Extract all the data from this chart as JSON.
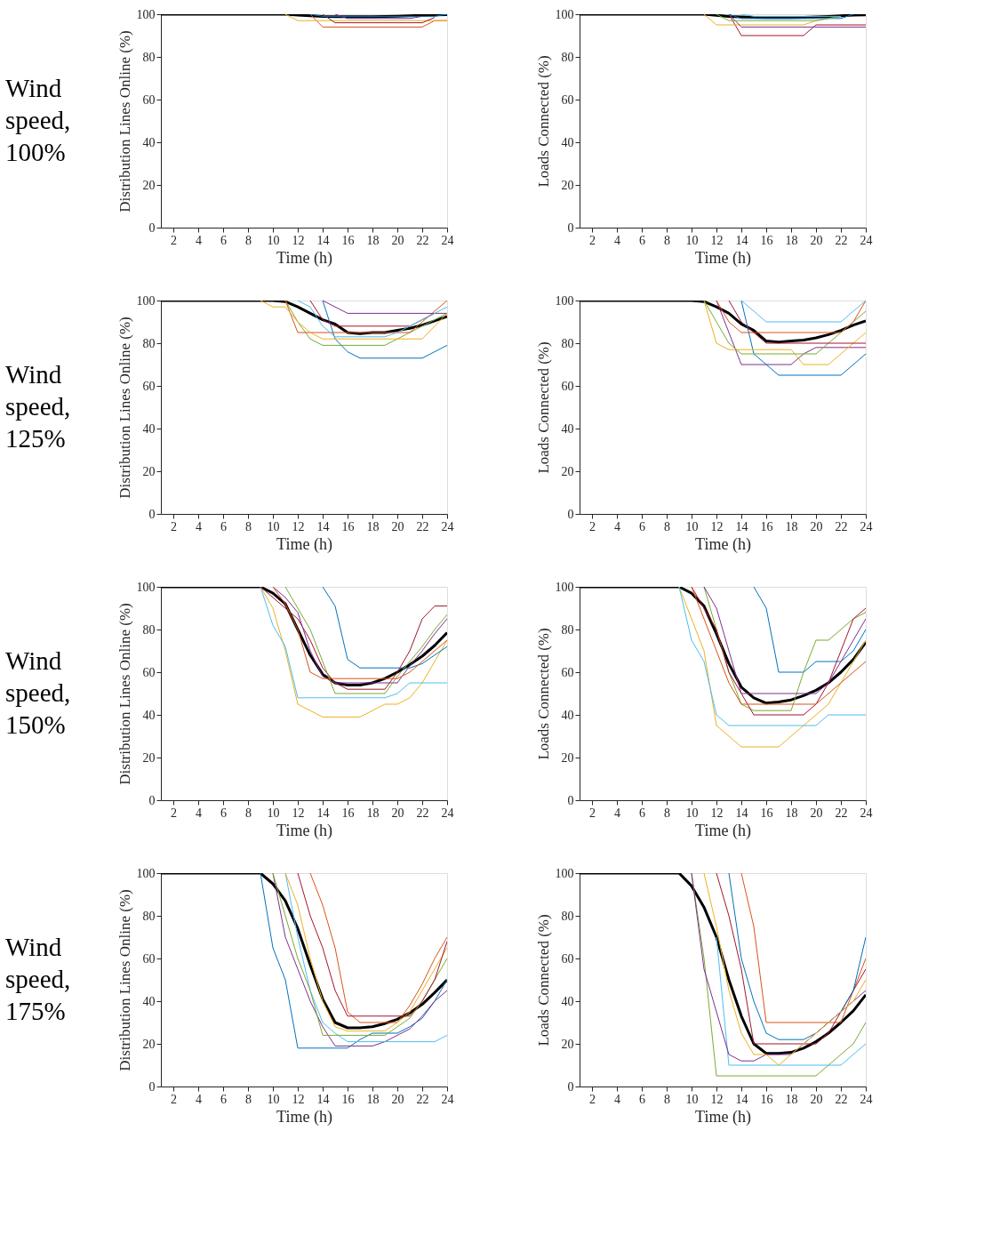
{
  "chart_data": [
    {
      "type": "line",
      "xlabel": "Time (h)",
      "ylabel": "Distribution Lines Online (%)",
      "annotations": [
        "Wind speed, 100%"
      ],
      "x": [
        1,
        2,
        3,
        4,
        5,
        6,
        7,
        8,
        9,
        10,
        11,
        12,
        13,
        14,
        15,
        16,
        17,
        18,
        19,
        20,
        21,
        22,
        23,
        24
      ],
      "xlim": [
        1,
        24
      ],
      "xticks": [
        2,
        4,
        6,
        8,
        10,
        12,
        14,
        16,
        18,
        20,
        22,
        24
      ],
      "ylim": [
        0,
        100
      ],
      "yticks": [
        0,
        20,
        40,
        60,
        80,
        100
      ],
      "grid": false,
      "series": [
        {
          "color": "#d95319",
          "values": [
            null,
            null,
            null,
            null,
            null,
            null,
            null,
            null,
            null,
            null,
            null,
            null,
            100,
            94,
            94,
            94,
            94,
            94,
            94,
            94,
            94,
            94,
            97,
            97
          ]
        },
        {
          "color": "#edb120",
          "values": [
            null,
            null,
            null,
            null,
            null,
            null,
            null,
            null,
            null,
            null,
            100,
            97,
            97,
            97,
            97,
            97,
            97,
            97,
            97,
            97,
            97,
            97,
            97,
            97
          ]
        },
        {
          "color": "#a2142f",
          "values": [
            null,
            null,
            null,
            null,
            null,
            null,
            null,
            null,
            null,
            null,
            null,
            null,
            null,
            100,
            96,
            96,
            96,
            96,
            96,
            96,
            96,
            96,
            98.5,
            null
          ]
        },
        {
          "color": "#0072bd",
          "values": [
            null,
            null,
            null,
            null,
            null,
            null,
            null,
            null,
            null,
            null,
            null,
            null,
            100,
            99,
            99,
            99,
            99,
            99,
            99,
            99,
            99,
            99,
            99,
            100
          ]
        },
        {
          "color": "#7e2f8e",
          "values": [
            null,
            null,
            null,
            null,
            null,
            null,
            null,
            null,
            null,
            null,
            null,
            null,
            null,
            null,
            100,
            98,
            98,
            98,
            98,
            98,
            98,
            99,
            null,
            null
          ]
        },
        {
          "color": "#000000",
          "values": [
            100,
            100,
            100,
            100,
            100,
            100,
            100,
            100,
            100,
            100,
            100,
            99.6,
            99.3,
            99,
            98.9,
            98.9,
            98.9,
            98.9,
            99,
            99.1,
            99.3,
            99.5,
            99.7,
            99.8
          ]
        }
      ]
    },
    {
      "type": "line",
      "xlabel": "Time (h)",
      "ylabel": "Loads Connected (%)",
      "x": [
        1,
        2,
        3,
        4,
        5,
        6,
        7,
        8,
        9,
        10,
        11,
        12,
        13,
        14,
        15,
        16,
        17,
        18,
        19,
        20,
        21,
        22,
        23,
        24
      ],
      "xlim": [
        1,
        24
      ],
      "xticks": [
        2,
        4,
        6,
        8,
        10,
        12,
        14,
        16,
        18,
        20,
        22,
        24
      ],
      "ylim": [
        0,
        100
      ],
      "yticks": [
        0,
        20,
        40,
        60,
        80,
        100
      ],
      "grid": false,
      "series": [
        {
          "color": "#a2142f",
          "values": [
            null,
            null,
            null,
            null,
            null,
            null,
            null,
            null,
            null,
            null,
            null,
            null,
            100,
            90,
            90,
            90,
            90,
            90,
            90,
            95,
            95,
            95,
            95,
            95
          ]
        },
        {
          "color": "#edb120",
          "values": [
            null,
            null,
            null,
            null,
            null,
            null,
            null,
            null,
            null,
            null,
            100,
            95,
            95,
            95,
            95,
            95,
            95,
            95,
            95,
            97,
            98,
            null,
            null,
            null
          ]
        },
        {
          "color": "#7e2f8e",
          "values": [
            null,
            null,
            null,
            null,
            null,
            null,
            null,
            null,
            null,
            null,
            null,
            null,
            100,
            94,
            94,
            94,
            94,
            94,
            94,
            94,
            94,
            94,
            94,
            94
          ]
        },
        {
          "color": "#0072bd",
          "values": [
            null,
            null,
            null,
            null,
            null,
            null,
            null,
            null,
            null,
            null,
            null,
            null,
            100,
            98,
            98,
            98,
            98,
            98,
            98,
            98,
            98,
            98,
            100,
            null
          ]
        },
        {
          "color": "#77ac30",
          "values": [
            null,
            null,
            null,
            null,
            null,
            null,
            null,
            null,
            null,
            null,
            null,
            100,
            97,
            97,
            97,
            97,
            97,
            97,
            97,
            97,
            98,
            99,
            null,
            null
          ]
        },
        {
          "color": "#4dbeee",
          "values": [
            null,
            null,
            null,
            null,
            null,
            null,
            null,
            null,
            null,
            null,
            null,
            null,
            null,
            100,
            99,
            99,
            99,
            99,
            99,
            99,
            99,
            99,
            null,
            null
          ]
        },
        {
          "color": "#000000",
          "values": [
            100,
            100,
            100,
            100,
            100,
            100,
            100,
            100,
            100,
            100,
            100,
            99.5,
            99,
            98.7,
            98.5,
            98.4,
            98.4,
            98.4,
            98.5,
            98.7,
            99,
            99.3,
            99.6,
            99.7
          ]
        }
      ]
    },
    {
      "type": "line",
      "xlabel": "Time (h)",
      "ylabel": "Distribution Lines Online (%)",
      "annotations": [
        "Wind speed, 125%"
      ],
      "x": [
        1,
        2,
        3,
        4,
        5,
        6,
        7,
        8,
        9,
        10,
        11,
        12,
        13,
        14,
        15,
        16,
        17,
        18,
        19,
        20,
        21,
        22,
        23,
        24
      ],
      "xlim": [
        1,
        24
      ],
      "xticks": [
        2,
        4,
        6,
        8,
        10,
        12,
        14,
        16,
        18,
        20,
        22,
        24
      ],
      "ylim": [
        0,
        100
      ],
      "yticks": [
        0,
        20,
        40,
        60,
        80,
        100
      ],
      "grid": false,
      "series": [
        {
          "color": "#0072bd",
          "values": [
            null,
            null,
            null,
            null,
            null,
            null,
            null,
            null,
            null,
            null,
            null,
            null,
            null,
            100,
            82,
            76,
            73,
            73,
            73,
            73,
            73,
            73,
            76,
            79
          ]
        },
        {
          "color": "#77ac30",
          "values": [
            null,
            null,
            null,
            null,
            null,
            null,
            null,
            null,
            null,
            null,
            100,
            90,
            82,
            79,
            79,
            79,
            79,
            79,
            79,
            82,
            85,
            88,
            91,
            94
          ]
        },
        {
          "color": "#d95319",
          "values": [
            null,
            null,
            null,
            null,
            null,
            null,
            null,
            null,
            null,
            null,
            100,
            85,
            85,
            85,
            85,
            85,
            null,
            null,
            85,
            85,
            85,
            90,
            95,
            100
          ]
        },
        {
          "color": "#7e2f8e",
          "values": [
            null,
            null,
            null,
            null,
            null,
            null,
            null,
            null,
            null,
            null,
            null,
            null,
            null,
            100,
            97,
            94,
            94,
            94,
            94,
            94,
            94,
            94,
            94,
            94
          ]
        },
        {
          "color": "#edb120",
          "values": [
            null,
            null,
            null,
            null,
            null,
            null,
            null,
            null,
            100,
            97,
            97,
            90,
            85,
            82,
            82,
            82,
            82,
            82,
            82,
            82,
            82,
            82,
            88,
            94
          ]
        },
        {
          "color": "#a2142f",
          "values": [
            null,
            null,
            null,
            null,
            null,
            null,
            null,
            null,
            null,
            null,
            null,
            null,
            100,
            91,
            88,
            88,
            88,
            88,
            88,
            88,
            88,
            91,
            94,
            null
          ]
        },
        {
          "color": "#4dbeee",
          "values": [
            null,
            null,
            null,
            null,
            null,
            null,
            null,
            null,
            null,
            null,
            null,
            100,
            97,
            88,
            83,
            83,
            83,
            83,
            83,
            85,
            88,
            91,
            94,
            97
          ]
        },
        {
          "color": "#000000",
          "values": [
            100,
            100,
            100,
            100,
            100,
            100,
            100,
            100,
            100,
            100,
            99.5,
            97,
            94,
            91,
            89,
            85,
            84.5,
            85,
            85,
            86,
            87,
            88.5,
            90.5,
            92.5
          ]
        }
      ]
    },
    {
      "type": "line",
      "xlabel": "Time (h)",
      "ylabel": "Loads Connected (%)",
      "x": [
        1,
        2,
        3,
        4,
        5,
        6,
        7,
        8,
        9,
        10,
        11,
        12,
        13,
        14,
        15,
        16,
        17,
        18,
        19,
        20,
        21,
        22,
        23,
        24
      ],
      "xlim": [
        1,
        24
      ],
      "xticks": [
        2,
        4,
        6,
        8,
        10,
        12,
        14,
        16,
        18,
        20,
        22,
        24
      ],
      "ylim": [
        0,
        100
      ],
      "yticks": [
        0,
        20,
        40,
        60,
        80,
        100
      ],
      "grid": false,
      "series": [
        {
          "color": "#0072bd",
          "values": [
            null,
            null,
            null,
            null,
            null,
            null,
            null,
            null,
            null,
            null,
            null,
            null,
            null,
            100,
            75,
            70,
            65,
            65,
            65,
            65,
            65,
            65,
            70,
            75
          ]
        },
        {
          "color": "#7e2f8e",
          "values": [
            null,
            null,
            null,
            null,
            null,
            null,
            null,
            null,
            null,
            null,
            null,
            100,
            85,
            70,
            70,
            70,
            70,
            70,
            75,
            78,
            78,
            78,
            78,
            78
          ]
        },
        {
          "color": "#edb120",
          "values": [
            null,
            null,
            null,
            null,
            null,
            null,
            null,
            null,
            null,
            null,
            100,
            80,
            77,
            77,
            77,
            77,
            77,
            77,
            70,
            70,
            70,
            75,
            80,
            85
          ]
        },
        {
          "color": "#77ac30",
          "values": [
            null,
            null,
            null,
            null,
            null,
            null,
            null,
            null,
            null,
            null,
            100,
            90,
            80,
            75,
            75,
            75,
            75,
            75,
            75,
            75,
            80,
            85,
            90,
            95
          ]
        },
        {
          "color": "#d95319",
          "values": [
            null,
            null,
            null,
            null,
            null,
            null,
            null,
            null,
            null,
            null,
            null,
            100,
            90,
            85,
            85,
            85,
            85,
            85,
            85,
            85,
            85,
            85,
            90,
            100
          ]
        },
        {
          "color": "#a2142f",
          "values": [
            null,
            null,
            null,
            null,
            null,
            null,
            null,
            null,
            null,
            null,
            null,
            null,
            100,
            90,
            85,
            80,
            80,
            80,
            80,
            80,
            80,
            80,
            80,
            80
          ]
        },
        {
          "color": "#4dbeee",
          "values": [
            null,
            null,
            null,
            null,
            null,
            null,
            null,
            null,
            null,
            null,
            null,
            null,
            null,
            100,
            95,
            90,
            90,
            90,
            90,
            90,
            90,
            90,
            95,
            100
          ]
        },
        {
          "color": "#000000",
          "values": [
            100,
            100,
            100,
            100,
            100,
            100,
            100,
            100,
            100,
            100,
            99.5,
            97,
            94,
            89,
            86,
            81,
            80.5,
            81,
            81.5,
            82.5,
            84,
            86,
            88.5,
            90.5
          ]
        }
      ]
    },
    {
      "type": "line",
      "xlabel": "Time (h)",
      "ylabel": "Distribution Lines Online (%)",
      "annotations": [
        "Wind speed, 150%"
      ],
      "x": [
        1,
        2,
        3,
        4,
        5,
        6,
        7,
        8,
        9,
        10,
        11,
        12,
        13,
        14,
        15,
        16,
        17,
        18,
        19,
        20,
        21,
        22,
        23,
        24
      ],
      "xlim": [
        1,
        24
      ],
      "xticks": [
        2,
        4,
        6,
        8,
        10,
        12,
        14,
        16,
        18,
        20,
        22,
        24
      ],
      "ylim": [
        0,
        100
      ],
      "yticks": [
        0,
        20,
        40,
        60,
        80,
        100
      ],
      "grid": false,
      "series": [
        {
          "color": "#edb120",
          "values": [
            null,
            null,
            null,
            null,
            null,
            null,
            null,
            null,
            100,
            90,
            70,
            45,
            42,
            39,
            39,
            39,
            39,
            42,
            45,
            45,
            48,
            55,
            65,
            75
          ]
        },
        {
          "color": "#4dbeee",
          "values": [
            null,
            null,
            null,
            null,
            null,
            null,
            null,
            null,
            100,
            82,
            72,
            48,
            48,
            48,
            48,
            48,
            48,
            48,
            48,
            50,
            55,
            55,
            55,
            55
          ]
        },
        {
          "color": "#0072bd",
          "values": [
            null,
            null,
            null,
            null,
            null,
            null,
            null,
            null,
            null,
            null,
            null,
            null,
            null,
            100,
            91,
            66,
            62,
            62,
            62,
            62,
            62,
            64,
            68,
            72
          ]
        },
        {
          "color": "#a2142f",
          "values": [
            null,
            null,
            null,
            null,
            null,
            null,
            null,
            null,
            100,
            95,
            90,
            85,
            75,
            62,
            55,
            52,
            52,
            52,
            52,
            60,
            70,
            85,
            91,
            91
          ]
        },
        {
          "color": "#7e2f8e",
          "values": [
            null,
            null,
            null,
            null,
            null,
            null,
            null,
            null,
            null,
            100,
            95,
            88,
            70,
            58,
            55,
            55,
            55,
            55,
            55,
            55,
            63,
            70,
            78,
            85
          ]
        },
        {
          "color": "#77ac30",
          "values": [
            null,
            null,
            null,
            null,
            null,
            null,
            null,
            null,
            null,
            null,
            100,
            90,
            80,
            65,
            50,
            50,
            50,
            50,
            50,
            58,
            65,
            72,
            80,
            87
          ]
        },
        {
          "color": "#d95319",
          "values": [
            null,
            null,
            null,
            null,
            null,
            null,
            null,
            null,
            null,
            100,
            92,
            80,
            60,
            57,
            57,
            57,
            57,
            57,
            57,
            57,
            60,
            65,
            70,
            75
          ]
        },
        {
          "color": "#000000",
          "values": [
            100,
            100,
            100,
            100,
            100,
            100,
            100,
            100,
            100,
            97,
            92,
            80,
            68,
            59,
            55,
            54,
            54,
            55,
            57,
            60,
            63.5,
            67.5,
            72.5,
            78.5
          ]
        }
      ]
    },
    {
      "type": "line",
      "xlabel": "Time (h)",
      "ylabel": "Loads Connected (%)",
      "x": [
        1,
        2,
        3,
        4,
        5,
        6,
        7,
        8,
        9,
        10,
        11,
        12,
        13,
        14,
        15,
        16,
        17,
        18,
        19,
        20,
        21,
        22,
        23,
        24
      ],
      "xlim": [
        1,
        24
      ],
      "xticks": [
        2,
        4,
        6,
        8,
        10,
        12,
        14,
        16,
        18,
        20,
        22,
        24
      ],
      "ylim": [
        0,
        100
      ],
      "yticks": [
        0,
        20,
        40,
        60,
        80,
        100
      ],
      "grid": false,
      "series": [
        {
          "color": "#edb120",
          "values": [
            null,
            null,
            null,
            null,
            null,
            null,
            null,
            null,
            100,
            85,
            70,
            35,
            30,
            25,
            25,
            25,
            25,
            30,
            35,
            40,
            45,
            55,
            65,
            75
          ]
        },
        {
          "color": "#4dbeee",
          "values": [
            null,
            null,
            null,
            null,
            null,
            null,
            null,
            null,
            100,
            75,
            65,
            40,
            35,
            35,
            35,
            35,
            35,
            35,
            35,
            35,
            40,
            40,
            40,
            40
          ]
        },
        {
          "color": "#0072bd",
          "values": [
            null,
            null,
            null,
            null,
            null,
            null,
            null,
            null,
            null,
            null,
            null,
            null,
            null,
            null,
            100,
            90,
            60,
            60,
            60,
            65,
            65,
            65,
            70,
            80
          ]
        },
        {
          "color": "#77ac30",
          "values": [
            null,
            null,
            null,
            null,
            null,
            null,
            null,
            null,
            null,
            null,
            100,
            80,
            60,
            45,
            42,
            42,
            42,
            42,
            60,
            75,
            75,
            80,
            85,
            88
          ]
        },
        {
          "color": "#a2142f",
          "values": [
            null,
            null,
            null,
            null,
            null,
            null,
            null,
            null,
            null,
            100,
            90,
            80,
            60,
            50,
            40,
            40,
            40,
            40,
            40,
            45,
            55,
            70,
            85,
            90
          ]
        },
        {
          "color": "#7e2f8e",
          "values": [
            null,
            null,
            null,
            null,
            null,
            null,
            null,
            null,
            null,
            null,
            100,
            90,
            70,
            50,
            50,
            50,
            50,
            50,
            50,
            50,
            55,
            65,
            75,
            85
          ]
        },
        {
          "color": "#d95319",
          "values": [
            null,
            null,
            null,
            null,
            null,
            null,
            null,
            null,
            null,
            100,
            85,
            70,
            55,
            45,
            45,
            45,
            45,
            45,
            45,
            45,
            50,
            55,
            60,
            65
          ]
        },
        {
          "color": "#000000",
          "values": [
            100,
            100,
            100,
            100,
            100,
            100,
            100,
            100,
            100,
            97,
            91,
            78,
            64,
            53,
            48,
            45.5,
            46,
            47,
            49,
            51.5,
            55,
            60,
            66,
            74
          ]
        }
      ]
    },
    {
      "type": "line",
      "xlabel": "Time (h)",
      "ylabel": "Distribution Lines Online (%)",
      "annotations": [
        "Wind speed, 175%"
      ],
      "x": [
        1,
        2,
        3,
        4,
        5,
        6,
        7,
        8,
        9,
        10,
        11,
        12,
        13,
        14,
        15,
        16,
        17,
        18,
        19,
        20,
        21,
        22,
        23,
        24
      ],
      "xlim": [
        1,
        24
      ],
      "xticks": [
        2,
        4,
        6,
        8,
        10,
        12,
        14,
        16,
        18,
        20,
        22,
        24
      ],
      "ylim": [
        0,
        100
      ],
      "yticks": [
        0,
        20,
        40,
        60,
        80,
        100
      ],
      "grid": false,
      "series": [
        {
          "color": "#0072bd",
          "values": [
            null,
            null,
            null,
            null,
            null,
            null,
            null,
            null,
            100,
            65,
            50,
            18,
            18,
            18,
            18,
            18,
            22,
            25,
            25,
            25,
            28,
            32,
            40,
            50
          ]
        },
        {
          "color": "#7e2f8e",
          "values": [
            null,
            null,
            null,
            null,
            null,
            null,
            null,
            null,
            null,
            100,
            70,
            55,
            40,
            28,
            19,
            19,
            19,
            19,
            21,
            24,
            27,
            33,
            40,
            45
          ]
        },
        {
          "color": "#4dbeee",
          "values": [
            null,
            null,
            null,
            null,
            null,
            null,
            null,
            null,
            null,
            null,
            100,
            70,
            45,
            30,
            25,
            21,
            21,
            21,
            21,
            21,
            21,
            21,
            21,
            24
          ]
        },
        {
          "color": "#d95319",
          "values": [
            null,
            null,
            null,
            null,
            null,
            null,
            null,
            null,
            null,
            null,
            null,
            null,
            100,
            85,
            65,
            35,
            30,
            30,
            30,
            30,
            38,
            48,
            60,
            70
          ]
        },
        {
          "color": "#77ac30",
          "values": [
            null,
            null,
            null,
            null,
            null,
            null,
            null,
            null,
            null,
            100,
            80,
            60,
            45,
            24,
            24,
            24,
            24,
            24,
            24,
            28,
            32,
            40,
            50,
            60
          ]
        },
        {
          "color": "#edb120",
          "values": [
            null,
            null,
            null,
            null,
            null,
            null,
            null,
            null,
            null,
            null,
            100,
            85,
            60,
            40,
            28,
            26,
            26,
            26,
            26,
            30,
            35,
            45,
            55,
            65
          ]
        },
        {
          "color": "#a2142f",
          "values": [
            null,
            null,
            null,
            null,
            null,
            null,
            null,
            null,
            null,
            null,
            null,
            100,
            80,
            65,
            45,
            33,
            33,
            33,
            33,
            33,
            33,
            40,
            50,
            68
          ]
        },
        {
          "color": "#000000",
          "values": [
            100,
            100,
            100,
            100,
            100,
            100,
            100,
            100,
            100,
            95,
            87,
            74,
            57,
            41,
            30,
            27.5,
            27.5,
            28,
            29.5,
            31.5,
            34.5,
            38.5,
            44,
            50
          ]
        }
      ]
    },
    {
      "type": "line",
      "xlabel": "Time (h)",
      "ylabel": "Loads Connected (%)",
      "x": [
        1,
        2,
        3,
        4,
        5,
        6,
        7,
        8,
        9,
        10,
        11,
        12,
        13,
        14,
        15,
        16,
        17,
        18,
        19,
        20,
        21,
        22,
        23,
        24
      ],
      "xlim": [
        1,
        24
      ],
      "xticks": [
        2,
        4,
        6,
        8,
        10,
        12,
        14,
        16,
        18,
        20,
        22,
        24
      ],
      "ylim": [
        0,
        100
      ],
      "yticks": [
        0,
        20,
        40,
        60,
        80,
        100
      ],
      "grid": false,
      "series": [
        {
          "color": "#77ac30",
          "values": [
            null,
            null,
            null,
            null,
            null,
            null,
            null,
            null,
            null,
            100,
            60,
            5,
            5,
            5,
            5,
            5,
            5,
            5,
            5,
            5,
            10,
            15,
            20,
            30
          ]
        },
        {
          "color": "#4dbeee",
          "values": [
            null,
            null,
            null,
            null,
            null,
            null,
            null,
            null,
            null,
            null,
            null,
            70,
            10,
            10,
            10,
            10,
            10,
            10,
            10,
            10,
            10,
            10,
            15,
            20
          ]
        },
        {
          "color": "#d95319",
          "values": [
            null,
            null,
            null,
            null,
            null,
            null,
            null,
            null,
            null,
            null,
            null,
            null,
            null,
            100,
            75,
            30,
            30,
            30,
            30,
            30,
            30,
            30,
            45,
            60
          ]
        },
        {
          "color": "#a2142f",
          "values": [
            null,
            null,
            null,
            null,
            null,
            null,
            null,
            null,
            null,
            null,
            null,
            100,
            80,
            55,
            20,
            20,
            20,
            20,
            20,
            20,
            25,
            35,
            45,
            55
          ]
        },
        {
          "color": "#0072bd",
          "values": [
            null,
            null,
            null,
            null,
            null,
            null,
            null,
            null,
            null,
            null,
            null,
            null,
            100,
            60,
            40,
            25,
            22,
            22,
            22,
            25,
            null,
            35,
            45,
            70
          ]
        },
        {
          "color": "#7e2f8e",
          "values": [
            null,
            null,
            null,
            null,
            null,
            null,
            null,
            null,
            null,
            100,
            55,
            35,
            15,
            12,
            12,
            15,
            15,
            15,
            20,
            25,
            30,
            35,
            40,
            45
          ]
        },
        {
          "color": "#edb120",
          "values": [
            null,
            null,
            null,
            null,
            null,
            null,
            null,
            null,
            null,
            null,
            100,
            75,
            45,
            25,
            15,
            15,
            10,
            15,
            20,
            25,
            30,
            35,
            40,
            50
          ]
        },
        {
          "color": "#000000",
          "values": [
            100,
            100,
            100,
            100,
            100,
            100,
            100,
            100,
            100,
            94,
            84,
            70,
            50,
            33,
            20,
            15.5,
            15.5,
            16,
            18,
            21,
            25,
            30,
            35.5,
            43
          ]
        }
      ]
    }
  ]
}
